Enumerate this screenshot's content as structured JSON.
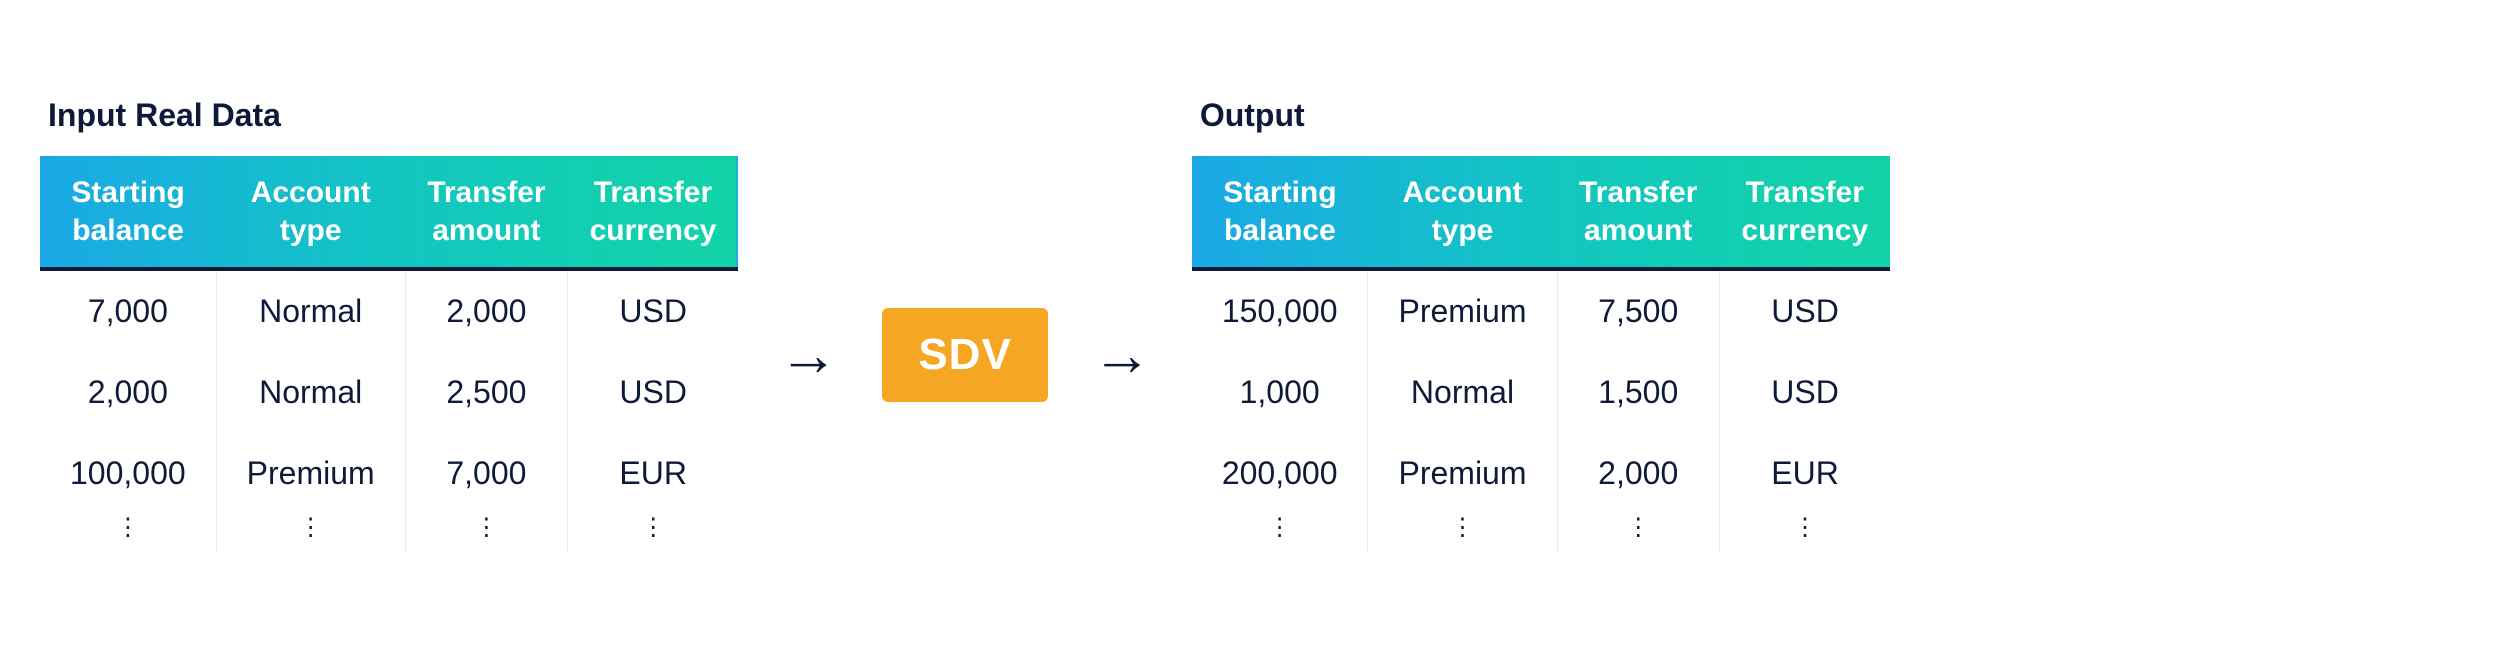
{
  "colors": {
    "text": "#0f1a3a",
    "headerBorder": "#0f1a3a",
    "cellDivider": "#e6e8ec",
    "badgeBg": "#f5a623",
    "badgeText": "#ffffff",
    "gradientStops": [
      "#1aa8e6",
      "#12c7c0",
      "#11d3a6"
    ]
  },
  "typography": {
    "titleSize": 32,
    "headerSize": 30,
    "cellSize": 32,
    "badgeSize": 44
  },
  "badgeLabel": "SDV",
  "arrowGlyph": "→",
  "input": {
    "title": "Input Real Data",
    "columns": [
      "Starting\nbalance",
      "Account\ntype",
      "Transfer\namount",
      "Transfer\ncurrency"
    ],
    "rows": [
      [
        "7,000",
        "Normal",
        "2,000",
        "USD"
      ],
      [
        "2,000",
        "Normal",
        "2,500",
        "USD"
      ],
      [
        "100,000",
        "Premium",
        "7,000",
        "EUR"
      ]
    ]
  },
  "output": {
    "title": "Output",
    "columns": [
      "Starting\nbalance",
      "Account\ntype",
      "Transfer\namount",
      "Transfer\ncurrency"
    ],
    "rows": [
      [
        "150,000",
        "Premium",
        "7,500",
        "USD"
      ],
      [
        "1,000",
        "Normal",
        "1,500",
        "USD"
      ],
      [
        "200,000",
        "Premium",
        "2,000",
        "EUR"
      ]
    ]
  },
  "ellipsis": "⋮"
}
